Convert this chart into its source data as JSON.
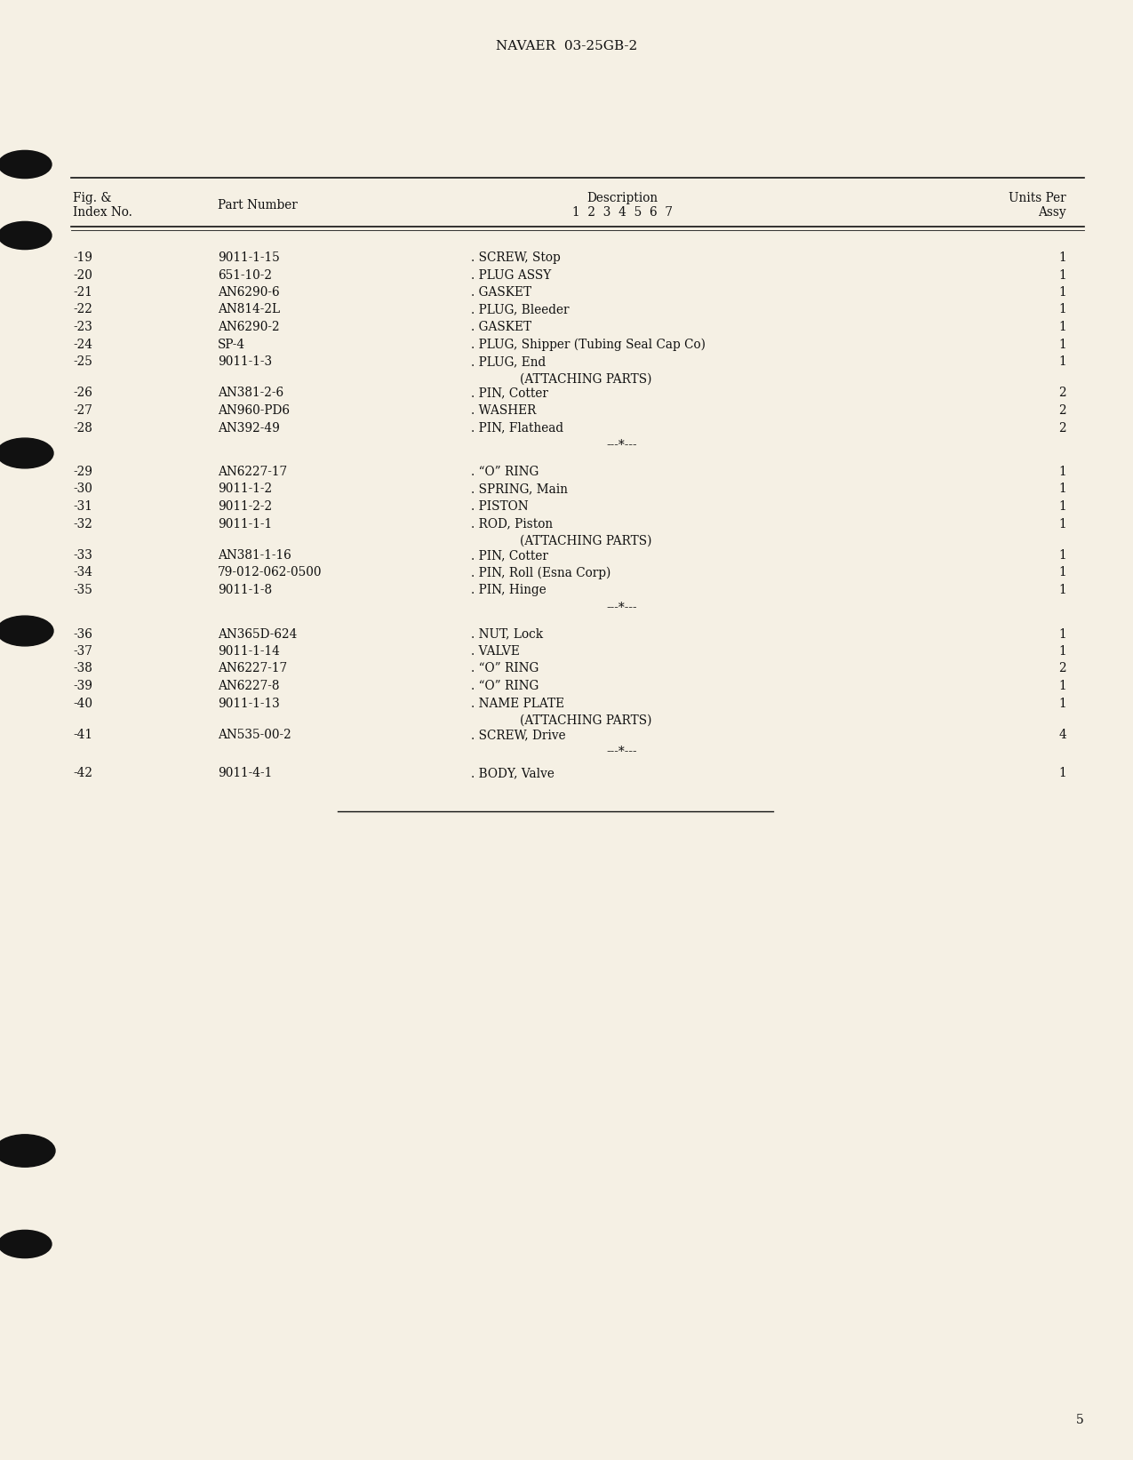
{
  "header_text": "NAVAER  03-25GB-2",
  "bg_color": "#f5f0e4",
  "rows": [
    {
      "index": "-19",
      "part": "9011-1-15",
      "desc": ". SCREW, Stop",
      "qty": "1",
      "type": "normal"
    },
    {
      "index": "-20",
      "part": "651-10-2",
      "desc": ". PLUG ASSY",
      "qty": "1",
      "type": "normal"
    },
    {
      "index": "-21",
      "part": "AN6290-6",
      "desc": ". GASKET",
      "qty": "1",
      "type": "normal"
    },
    {
      "index": "-22",
      "part": "AN814-2L",
      "desc": ". PLUG, Bleeder",
      "qty": "1",
      "type": "normal"
    },
    {
      "index": "-23",
      "part": "AN6290-2",
      "desc": ". GASKET",
      "qty": "1",
      "type": "normal"
    },
    {
      "index": "-24",
      "part": "SP-4",
      "desc": ". PLUG, Shipper (Tubing Seal Cap Co)",
      "qty": "1",
      "type": "normal"
    },
    {
      "index": "-25",
      "part": "9011-1-3",
      "desc": ". PLUG, End",
      "qty": "1",
      "type": "normal"
    },
    {
      "index": "",
      "part": "",
      "desc": "(ATTACHING PARTS)",
      "qty": "",
      "type": "attaching"
    },
    {
      "index": "-26",
      "part": "AN381-2-6",
      "desc": ". PIN, Cotter",
      "qty": "2",
      "type": "normal"
    },
    {
      "index": "-27",
      "part": "AN960-PD6",
      "desc": ". WASHER",
      "qty": "2",
      "type": "normal"
    },
    {
      "index": "-28",
      "part": "AN392-49",
      "desc": ". PIN, Flathead",
      "qty": "2",
      "type": "normal"
    },
    {
      "index": "",
      "part": "",
      "desc": "---*---",
      "qty": "",
      "type": "separator"
    },
    {
      "index": "-29",
      "part": "AN6227-17",
      "desc": ". “O” RING",
      "qty": "1",
      "type": "normal"
    },
    {
      "index": "-30",
      "part": "9011-1-2",
      "desc": ". SPRING, Main",
      "qty": "1",
      "type": "normal"
    },
    {
      "index": "-31",
      "part": "9011-2-2",
      "desc": ". PISTON",
      "qty": "1",
      "type": "normal"
    },
    {
      "index": "-32",
      "part": "9011-1-1",
      "desc": ". ROD, Piston",
      "qty": "1",
      "type": "normal"
    },
    {
      "index": "",
      "part": "",
      "desc": "(ATTACHING PARTS)",
      "qty": "",
      "type": "attaching"
    },
    {
      "index": "-33",
      "part": "AN381-1-16",
      "desc": ". PIN, Cotter",
      "qty": "1",
      "type": "normal"
    },
    {
      "index": "-34",
      "part": "79-012-062-0500",
      "desc": ". PIN, Roll (Esna Corp)",
      "qty": "1",
      "type": "normal"
    },
    {
      "index": "-35",
      "part": "9011-1-8",
      "desc": ". PIN, Hinge",
      "qty": "1",
      "type": "normal"
    },
    {
      "index": "",
      "part": "",
      "desc": "---*---",
      "qty": "",
      "type": "separator"
    },
    {
      "index": "-36",
      "part": "AN365D-624",
      "desc": ". NUT, Lock",
      "qty": "1",
      "type": "normal"
    },
    {
      "index": "-37",
      "part": "9011-1-14",
      "desc": ". VALVE",
      "qty": "1",
      "type": "normal"
    },
    {
      "index": "-38",
      "part": "AN6227-17",
      "desc": ". “O” RING",
      "qty": "2",
      "type": "normal"
    },
    {
      "index": "-39",
      "part": "AN6227-8",
      "desc": ". “O” RING",
      "qty": "1",
      "type": "normal"
    },
    {
      "index": "-40",
      "part": "9011-1-13",
      "desc": ". NAME PLATE",
      "qty": "1",
      "type": "normal"
    },
    {
      "index": "",
      "part": "",
      "desc": "(ATTACHING PARTS)",
      "qty": "",
      "type": "attaching"
    },
    {
      "index": "-41",
      "part": "AN535-00-2",
      "desc": ". SCREW, Drive",
      "qty": "4",
      "type": "normal"
    },
    {
      "index": "",
      "part": "",
      "desc": "---*---",
      "qty": "",
      "type": "separator"
    },
    {
      "index": "-42",
      "part": "9011-4-1",
      "desc": ". BODY, Valve",
      "qty": "1",
      "type": "normal"
    }
  ],
  "page_number": "5"
}
